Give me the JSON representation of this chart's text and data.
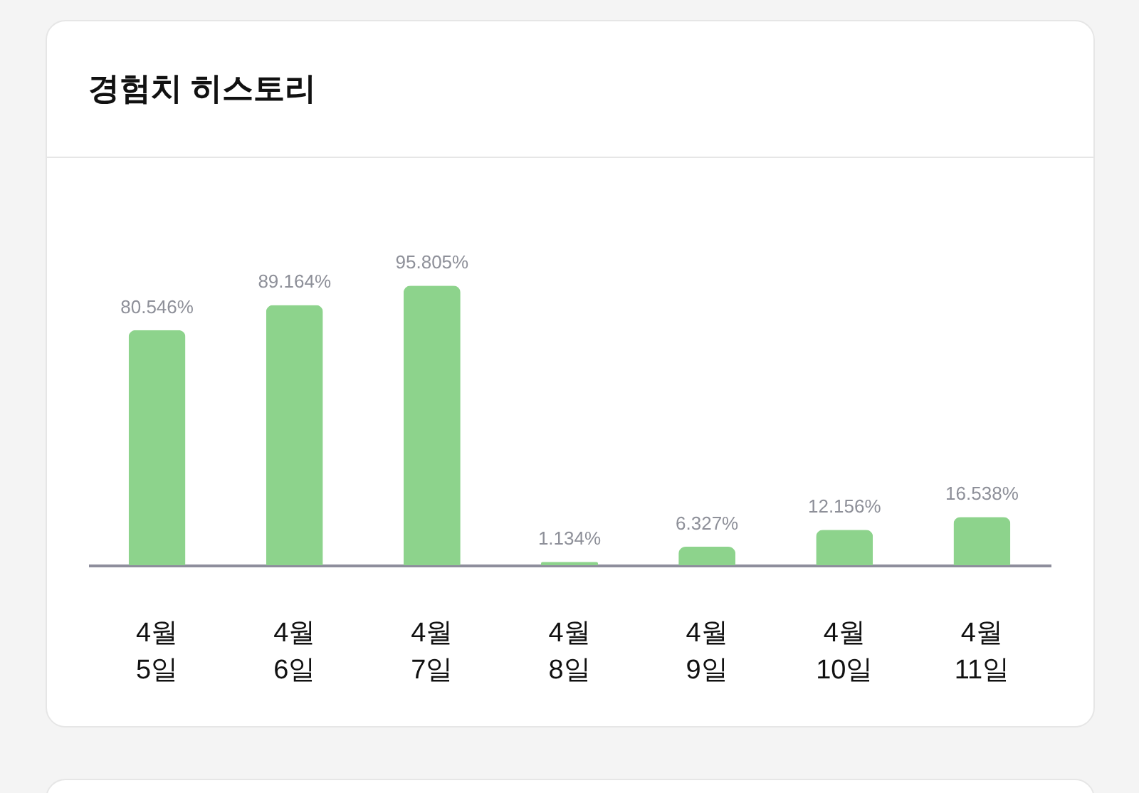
{
  "chart_data": {
    "type": "bar",
    "title": "경험치 히스토리",
    "categories": [
      "4월 5일",
      "4월 6일",
      "4월 7일",
      "4월 8일",
      "4월 9일",
      "4월 10일",
      "4월 11일"
    ],
    "values": [
      80.546,
      89.164,
      95.805,
      1.134,
      6.327,
      12.156,
      16.538
    ],
    "color": "#8dd38c",
    "value_labels": [
      "80.546%",
      "89.164%",
      "95.805%",
      "1.134%",
      "6.327%",
      "12.156%",
      "16.538%"
    ],
    "tick_labels": "x"
  }
}
